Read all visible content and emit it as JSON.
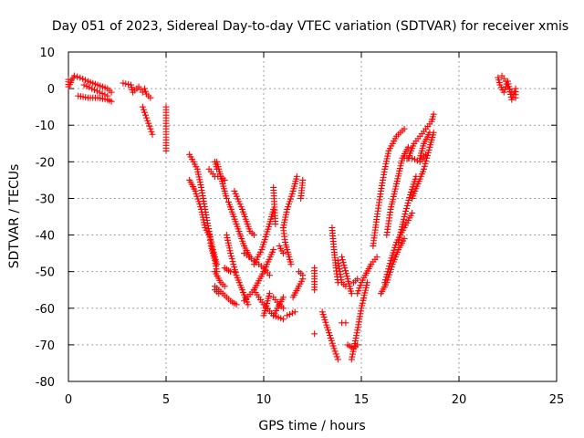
{
  "chart_data": {
    "type": "scatter",
    "title": "Day 051 of 2023, Sidereal Day-to-day VTEC variation (SDTVAR) for receiver xmis",
    "xlabel": "GPS time / hours",
    "ylabel": "SDTVAR / TECUs",
    "xlim": [
      0,
      25
    ],
    "ylim": [
      -80,
      10
    ],
    "x_ticks": [
      "0",
      "5",
      "10",
      "15",
      "20",
      "25"
    ],
    "y_ticks": [
      "10",
      "0",
      "-10",
      "-20",
      "-30",
      "-40",
      "-50",
      "-60",
      "-70",
      "-80"
    ],
    "grid": true,
    "marker": "+",
    "color": "#ff0000",
    "segments": [
      {
        "points": [
          [
            0.0,
            2.5
          ],
          [
            0.0,
            0.5
          ],
          [
            0.3,
            3.5
          ],
          [
            0.6,
            3.0
          ],
          [
            1.0,
            2.0
          ],
          [
            1.5,
            1.0
          ],
          [
            2.0,
            0.0
          ],
          [
            2.2,
            -1.0
          ]
        ]
      },
      {
        "points": [
          [
            0.5,
            -2.0
          ],
          [
            1.0,
            -2.5
          ],
          [
            1.5,
            -2.5
          ],
          [
            2.0,
            -3.0
          ],
          [
            2.2,
            -3.5
          ]
        ]
      },
      {
        "points": [
          [
            0.8,
            1.0
          ],
          [
            1.2,
            0.0
          ],
          [
            1.6,
            -1.0
          ],
          [
            2.0,
            -2.0
          ]
        ]
      },
      {
        "points": [
          [
            2.8,
            1.5
          ],
          [
            3.2,
            1.0
          ],
          [
            3.3,
            -1.0
          ],
          [
            3.6,
            0.5
          ],
          [
            3.8,
            -1.0
          ]
        ]
      },
      {
        "points": [
          [
            3.9,
            0.0
          ],
          [
            4.0,
            -1.5
          ],
          [
            4.2,
            -2.5
          ]
        ]
      },
      {
        "points": [
          [
            3.8,
            -5.0
          ],
          [
            4.0,
            -8.0
          ],
          [
            4.2,
            -11.0
          ],
          [
            4.3,
            -12.5
          ]
        ]
      },
      {
        "points": [
          [
            5.0,
            -5.0
          ],
          [
            5.0,
            -8.0
          ],
          [
            5.0,
            -17.0
          ]
        ]
      },
      {
        "points": [
          [
            6.2,
            -18.0
          ],
          [
            6.6,
            -22.0
          ],
          [
            6.8,
            -27.0
          ],
          [
            7.0,
            -33.0
          ],
          [
            7.2,
            -39.0
          ],
          [
            7.4,
            -44.0
          ],
          [
            7.6,
            -48.0
          ]
        ]
      },
      {
        "points": [
          [
            6.2,
            -25.0
          ],
          [
            6.5,
            -28.0
          ],
          [
            6.8,
            -33.0
          ],
          [
            7.0,
            -38.0
          ],
          [
            7.2,
            -40.0
          ]
        ]
      },
      {
        "points": [
          [
            7.2,
            -39.0
          ],
          [
            7.3,
            -43.0
          ],
          [
            7.5,
            -47.0
          ],
          [
            7.6,
            -50.0
          ]
        ]
      },
      {
        "points": [
          [
            7.2,
            -22.0
          ],
          [
            7.5,
            -24.0
          ],
          [
            7.8,
            -24.0
          ],
          [
            8.0,
            -25.0
          ]
        ]
      },
      {
        "points": [
          [
            7.5,
            -20.0
          ],
          [
            7.6,
            -22.0
          ]
        ]
      },
      {
        "points": [
          [
            7.5,
            -50.0
          ],
          [
            7.8,
            -53.0
          ],
          [
            8.0,
            -54.0
          ]
        ]
      },
      {
        "points": [
          [
            7.5,
            -54.0
          ],
          [
            7.9,
            -56.0
          ],
          [
            8.3,
            -58.0
          ],
          [
            8.6,
            -59.0
          ]
        ]
      },
      {
        "points": [
          [
            7.5,
            -55.0
          ],
          [
            7.7,
            -56.0
          ]
        ]
      },
      {
        "points": [
          [
            7.6,
            -20.0
          ],
          [
            7.8,
            -24.0
          ],
          [
            8.0,
            -28.0
          ],
          [
            8.1,
            -30.0
          ]
        ]
      },
      {
        "points": [
          [
            8.0,
            -49.0
          ],
          [
            8.3,
            -50.0
          ],
          [
            8.5,
            -50.0
          ]
        ]
      },
      {
        "points": [
          [
            8.1,
            -40.0
          ],
          [
            8.3,
            -45.0
          ],
          [
            8.6,
            -51.0
          ],
          [
            8.9,
            -55.0
          ],
          [
            9.2,
            -59.0
          ]
        ]
      },
      {
        "points": [
          [
            8.2,
            -31.0
          ],
          [
            8.6,
            -37.0
          ],
          [
            9.0,
            -43.0
          ],
          [
            9.3,
            -46.0
          ]
        ]
      },
      {
        "points": [
          [
            8.5,
            -28.0
          ],
          [
            8.9,
            -33.0
          ],
          [
            9.3,
            -39.0
          ],
          [
            9.5,
            -40.0
          ]
        ]
      },
      {
        "points": [
          [
            9.0,
            -58.0
          ],
          [
            9.5,
            -55.0
          ],
          [
            10.0,
            -50.0
          ],
          [
            10.5,
            -44.0
          ]
        ]
      },
      {
        "points": [
          [
            9.0,
            -45.0
          ],
          [
            9.5,
            -47.0
          ],
          [
            10.0,
            -49.0
          ],
          [
            10.3,
            -51.0
          ]
        ]
      },
      {
        "points": [
          [
            9.5,
            -48.0
          ],
          [
            9.9,
            -44.0
          ],
          [
            10.3,
            -37.0
          ],
          [
            10.5,
            -33.0
          ]
        ]
      },
      {
        "points": [
          [
            9.5,
            -55.0
          ],
          [
            10.0,
            -59.0
          ],
          [
            10.5,
            -62.0
          ],
          [
            11.0,
            -63.0
          ]
        ]
      },
      {
        "points": [
          [
            10.0,
            -62.0
          ],
          [
            10.2,
            -58.0
          ],
          [
            10.3,
            -56.0
          ]
        ]
      },
      {
        "points": [
          [
            10.5,
            -62.0
          ],
          [
            10.7,
            -60.0
          ],
          [
            11.0,
            -57.0
          ]
        ]
      },
      {
        "points": [
          [
            10.5,
            -57.0
          ],
          [
            10.8,
            -59.0
          ],
          [
            11.0,
            -60.0
          ]
        ]
      },
      {
        "points": [
          [
            10.8,
            -43.0
          ],
          [
            11.0,
            -45.0
          ]
        ]
      },
      {
        "points": [
          [
            11.0,
            -38.0
          ],
          [
            11.1,
            -42.0
          ],
          [
            11.3,
            -46.0
          ],
          [
            11.4,
            -48.0
          ]
        ]
      },
      {
        "points": [
          [
            11.0,
            -38.0
          ],
          [
            11.2,
            -33.0
          ],
          [
            11.5,
            -28.0
          ],
          [
            11.7,
            -24.0
          ]
        ]
      },
      {
        "points": [
          [
            11.2,
            -62.0
          ],
          [
            11.6,
            -61.0
          ]
        ]
      },
      {
        "points": [
          [
            11.5,
            -57.0
          ],
          [
            11.8,
            -54.0
          ],
          [
            12.0,
            -52.0
          ]
        ]
      },
      {
        "points": [
          [
            11.8,
            -50.0
          ],
          [
            12.0,
            -51.0
          ]
        ]
      },
      {
        "points": [
          [
            11.9,
            -30.0
          ],
          [
            12.0,
            -25.0
          ]
        ]
      },
      {
        "points": [
          [
            10.5,
            -27.0
          ],
          [
            10.6,
            -37.0
          ]
        ]
      },
      {
        "points": [
          [
            12.6,
            -49.0
          ],
          [
            12.6,
            -55.0
          ]
        ]
      },
      {
        "points": [
          [
            12.6,
            -67.0
          ]
        ]
      },
      {
        "points": [
          [
            13.5,
            -38.0
          ],
          [
            13.6,
            -44.0
          ],
          [
            13.7,
            -49.0
          ],
          [
            13.8,
            -53.0
          ]
        ]
      },
      {
        "points": [
          [
            13.0,
            -61.0
          ],
          [
            13.3,
            -66.0
          ],
          [
            13.6,
            -71.0
          ],
          [
            13.8,
            -74.0
          ]
        ]
      },
      {
        "points": [
          [
            13.8,
            -47.0
          ],
          [
            14.0,
            -53.0
          ],
          [
            14.2,
            -54.0
          ]
        ]
      },
      {
        "points": [
          [
            14.0,
            -64.0
          ],
          [
            14.2,
            -64.0
          ]
        ]
      },
      {
        "points": [
          [
            14.0,
            -46.0
          ],
          [
            14.3,
            -52.0
          ],
          [
            14.5,
            -56.0
          ]
        ]
      },
      {
        "points": [
          [
            14.3,
            -70.0
          ],
          [
            14.6,
            -71.0
          ],
          [
            14.8,
            -70.0
          ]
        ]
      },
      {
        "points": [
          [
            14.5,
            -74.0
          ],
          [
            14.8,
            -66.0
          ],
          [
            15.0,
            -60.0
          ],
          [
            15.3,
            -53.0
          ]
        ]
      },
      {
        "points": [
          [
            14.8,
            -56.0
          ],
          [
            15.0,
            -53.0
          ],
          [
            15.2,
            -51.0
          ],
          [
            15.5,
            -48.0
          ],
          [
            15.8,
            -46.0
          ]
        ]
      },
      {
        "points": [
          [
            14.6,
            -53.0
          ],
          [
            14.8,
            -52.0
          ]
        ]
      },
      {
        "points": [
          [
            15.6,
            -43.0
          ],
          [
            15.8,
            -35.0
          ],
          [
            16.0,
            -28.0
          ],
          [
            16.2,
            -22.0
          ],
          [
            16.4,
            -17.0
          ],
          [
            16.8,
            -13.0
          ],
          [
            17.2,
            -11.0
          ]
        ]
      },
      {
        "points": [
          [
            16.0,
            -56.0
          ],
          [
            16.3,
            -53.0
          ],
          [
            16.6,
            -48.0
          ],
          [
            16.9,
            -44.0
          ],
          [
            17.2,
            -41.0
          ]
        ]
      },
      {
        "points": [
          [
            16.2,
            -53.0
          ],
          [
            16.5,
            -47.0
          ],
          [
            16.8,
            -42.0
          ],
          [
            17.2,
            -38.0
          ],
          [
            17.6,
            -34.0
          ]
        ]
      },
      {
        "points": [
          [
            16.3,
            -40.0
          ],
          [
            16.5,
            -33.0
          ],
          [
            16.8,
            -26.0
          ],
          [
            17.1,
            -19.0
          ],
          [
            17.4,
            -16.0
          ]
        ]
      },
      {
        "points": [
          [
            16.9,
            -42.0
          ],
          [
            17.2,
            -35.0
          ],
          [
            17.5,
            -29.0
          ],
          [
            17.8,
            -24.0
          ]
        ]
      },
      {
        "points": [
          [
            17.2,
            -19.0
          ],
          [
            17.6,
            -19.0
          ],
          [
            18.0,
            -20.0
          ],
          [
            18.3,
            -18.0
          ]
        ]
      },
      {
        "points": [
          [
            17.4,
            -19.0
          ],
          [
            17.7,
            -15.0
          ],
          [
            18.0,
            -13.0
          ],
          [
            18.3,
            -11.0
          ],
          [
            18.6,
            -9.0
          ],
          [
            18.7,
            -7.0
          ]
        ]
      },
      {
        "points": [
          [
            17.6,
            -30.0
          ],
          [
            17.9,
            -26.0
          ],
          [
            18.2,
            -22.0
          ],
          [
            18.5,
            -16.0
          ],
          [
            18.7,
            -12.0
          ]
        ]
      },
      {
        "points": [
          [
            18.0,
            -19.0
          ],
          [
            18.2,
            -15.0
          ],
          [
            18.5,
            -12.0
          ]
        ]
      },
      {
        "points": [
          [
            22.0,
            3.0
          ],
          [
            22.1,
            1.0
          ],
          [
            22.3,
            -1.0
          ],
          [
            22.5,
            2.0
          ],
          [
            22.7,
            -3.0
          ],
          [
            22.9,
            0.0
          ],
          [
            22.9,
            -2.5
          ]
        ]
      },
      {
        "points": [
          [
            22.2,
            3.5
          ],
          [
            22.4,
            2.0
          ],
          [
            22.5,
            0.5
          ],
          [
            22.7,
            -1.0
          ]
        ]
      }
    ]
  }
}
